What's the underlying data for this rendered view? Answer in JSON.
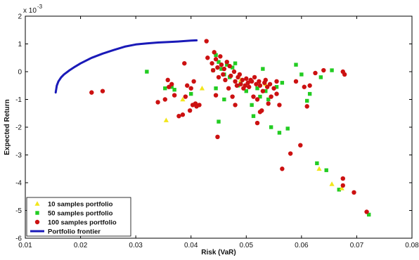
{
  "chart_data": {
    "type": "scatter",
    "title": "",
    "xlabel": "Risk (VaR)",
    "ylabel": "Expected Return",
    "y_multiplier_label": "x 10",
    "y_multiplier_exponent": "-3",
    "xlim": [
      0.01,
      0.08
    ],
    "ylim": [
      -6,
      2
    ],
    "xticks": [
      0.01,
      0.02,
      0.03,
      0.04,
      0.05,
      0.06,
      0.07,
      0.08
    ],
    "xtick_labels": [
      "0.01",
      "0.02",
      "0.03",
      "0.04",
      "0.05",
      "0.06",
      "0.07",
      "0.08"
    ],
    "yticks": [
      2,
      1,
      0,
      -1,
      -2,
      -3,
      -4,
      -5,
      -6
    ],
    "ytick_labels": [
      "2",
      "1",
      "0",
      "-1",
      "-2",
      "-3",
      "-4",
      "-5",
      "-6"
    ],
    "grid": false,
    "legend_position": "bottom-left",
    "series": [
      {
        "name": "10 samples portfolio",
        "kind": "scatter",
        "marker": "triangle",
        "color": "#f2e61c",
        "points": [
          [
            0.0355,
            -1.75
          ],
          [
            0.0385,
            -1.0
          ],
          [
            0.042,
            -0.6
          ],
          [
            0.049,
            -0.3
          ],
          [
            0.0535,
            -0.45
          ],
          [
            0.0632,
            -3.5
          ],
          [
            0.0655,
            -4.05
          ],
          [
            0.0673,
            -4.2
          ]
        ]
      },
      {
        "name": "50 samples portfolio",
        "kind": "scatter",
        "marker": "square",
        "color": "#22cc22",
        "points": [
          [
            0.032,
            0.0
          ],
          [
            0.0353,
            -0.6
          ],
          [
            0.0365,
            -0.55
          ],
          [
            0.037,
            -0.65
          ],
          [
            0.04,
            -0.8
          ],
          [
            0.044,
            0.05
          ],
          [
            0.0445,
            0.6
          ],
          [
            0.045,
            0.35
          ],
          [
            0.0455,
            0.1
          ],
          [
            0.046,
            -0.1
          ],
          [
            0.0465,
            0.25
          ],
          [
            0.047,
            -0.2
          ],
          [
            0.0475,
            0.15
          ],
          [
            0.048,
            0.3
          ],
          [
            0.0445,
            -0.6
          ],
          [
            0.046,
            -1.0
          ],
          [
            0.045,
            -1.8
          ],
          [
            0.0485,
            -0.5
          ],
          [
            0.049,
            -0.4
          ],
          [
            0.05,
            -0.7
          ],
          [
            0.051,
            -1.2
          ],
          [
            0.0513,
            -1.6
          ],
          [
            0.052,
            -0.6
          ],
          [
            0.0525,
            -0.9
          ],
          [
            0.053,
            0.1
          ],
          [
            0.0535,
            -0.7
          ],
          [
            0.054,
            -1.0
          ],
          [
            0.0545,
            -2.0
          ],
          [
            0.0555,
            -0.55
          ],
          [
            0.056,
            -2.2
          ],
          [
            0.0565,
            -0.4
          ],
          [
            0.0575,
            -2.05
          ],
          [
            0.059,
            0.25
          ],
          [
            0.06,
            -0.1
          ],
          [
            0.061,
            -1.05
          ],
          [
            0.0615,
            -0.8
          ],
          [
            0.0635,
            -0.2
          ],
          [
            0.0655,
            0.05
          ],
          [
            0.0628,
            -3.3
          ],
          [
            0.0645,
            -3.55
          ],
          [
            0.0668,
            -4.25
          ],
          [
            0.0722,
            -5.15
          ]
        ]
      },
      {
        "name": "100 samples portfolio",
        "kind": "scatter",
        "marker": "circle",
        "color": "#cc1111",
        "points": [
          [
            0.022,
            -0.75
          ],
          [
            0.024,
            -0.7
          ],
          [
            0.034,
            -1.1
          ],
          [
            0.0353,
            -1.0
          ],
          [
            0.0358,
            -0.3
          ],
          [
            0.036,
            -0.55
          ],
          [
            0.0365,
            -0.45
          ],
          [
            0.037,
            -0.85
          ],
          [
            0.0378,
            -1.6
          ],
          [
            0.0385,
            -1.55
          ],
          [
            0.0388,
            0.3
          ],
          [
            0.039,
            -0.9
          ],
          [
            0.0393,
            -0.5
          ],
          [
            0.0398,
            -1.4
          ],
          [
            0.04,
            -0.6
          ],
          [
            0.0403,
            -1.2
          ],
          [
            0.0405,
            -0.35
          ],
          [
            0.0408,
            -1.15
          ],
          [
            0.041,
            -1.25
          ],
          [
            0.0415,
            -1.2
          ],
          [
            0.0428,
            1.1
          ],
          [
            0.043,
            0.5
          ],
          [
            0.0438,
            0.3
          ],
          [
            0.044,
            0.05
          ],
          [
            0.0442,
            0.7
          ],
          [
            0.0445,
            0.45
          ],
          [
            0.0448,
            0.15
          ],
          [
            0.045,
            -0.2
          ],
          [
            0.0453,
            0.55
          ],
          [
            0.0455,
            0.25
          ],
          [
            0.0458,
            -0.1
          ],
          [
            0.046,
            0.1
          ],
          [
            0.0462,
            -0.3
          ],
          [
            0.0465,
            0.35
          ],
          [
            0.0468,
            -0.6
          ],
          [
            0.047,
            0.2
          ],
          [
            0.0472,
            -0.15
          ],
          [
            0.0475,
            -0.9
          ],
          [
            0.0478,
            0.0
          ],
          [
            0.048,
            -0.35
          ],
          [
            0.0483,
            -0.5
          ],
          [
            0.0485,
            -0.2
          ],
          [
            0.0488,
            -0.1
          ],
          [
            0.049,
            -0.45
          ],
          [
            0.0493,
            -0.3
          ],
          [
            0.0495,
            -0.6
          ],
          [
            0.0498,
            -0.5
          ],
          [
            0.05,
            -0.25
          ],
          [
            0.0503,
            -0.4
          ],
          [
            0.0505,
            -0.55
          ],
          [
            0.0508,
            -0.3
          ],
          [
            0.051,
            -0.35
          ],
          [
            0.0513,
            -0.9
          ],
          [
            0.0515,
            -0.2
          ],
          [
            0.0518,
            -0.45
          ],
          [
            0.052,
            -1.0
          ],
          [
            0.0523,
            -0.35
          ],
          [
            0.0525,
            -0.5
          ],
          [
            0.0528,
            -1.4
          ],
          [
            0.053,
            -0.7
          ],
          [
            0.0533,
            -0.4
          ],
          [
            0.0535,
            -0.3
          ],
          [
            0.0538,
            -0.55
          ],
          [
            0.054,
            -1.15
          ],
          [
            0.0543,
            -0.45
          ],
          [
            0.0545,
            -0.9
          ],
          [
            0.055,
            -0.6
          ],
          [
            0.0555,
            -0.8
          ],
          [
            0.056,
            -1.2
          ],
          [
            0.0565,
            -3.5
          ],
          [
            0.058,
            -2.95
          ],
          [
            0.059,
            -0.35
          ],
          [
            0.0598,
            -2.65
          ],
          [
            0.0605,
            -0.55
          ],
          [
            0.061,
            -1.25
          ],
          [
            0.0615,
            -0.5
          ],
          [
            0.0625,
            -0.05
          ],
          [
            0.064,
            0.05
          ],
          [
            0.0675,
            0.0
          ],
          [
            0.0678,
            -0.1
          ],
          [
            0.0448,
            -2.35
          ],
          [
            0.052,
            -1.85
          ],
          [
            0.0525,
            -1.45
          ],
          [
            0.0675,
            -3.85
          ],
          [
            0.0675,
            -4.1
          ],
          [
            0.0695,
            -4.35
          ],
          [
            0.0718,
            -5.05
          ],
          [
            0.0555,
            -0.35
          ],
          [
            0.0445,
            -0.85
          ],
          [
            0.048,
            -1.2
          ]
        ]
      },
      {
        "name": "Portfolio frontier",
        "kind": "line",
        "color": "#1a1ab8",
        "points": [
          [
            0.0155,
            -0.75
          ],
          [
            0.0157,
            -0.5
          ],
          [
            0.016,
            -0.35
          ],
          [
            0.0165,
            -0.2
          ],
          [
            0.017,
            -0.1
          ],
          [
            0.018,
            0.05
          ],
          [
            0.019,
            0.18
          ],
          [
            0.02,
            0.3
          ],
          [
            0.022,
            0.5
          ],
          [
            0.024,
            0.65
          ],
          [
            0.026,
            0.78
          ],
          [
            0.028,
            0.9
          ],
          [
            0.03,
            0.98
          ],
          [
            0.032,
            1.02
          ],
          [
            0.034,
            1.05
          ],
          [
            0.036,
            1.07
          ],
          [
            0.038,
            1.09
          ],
          [
            0.04,
            1.12
          ],
          [
            0.041,
            1.13
          ]
        ]
      }
    ]
  }
}
